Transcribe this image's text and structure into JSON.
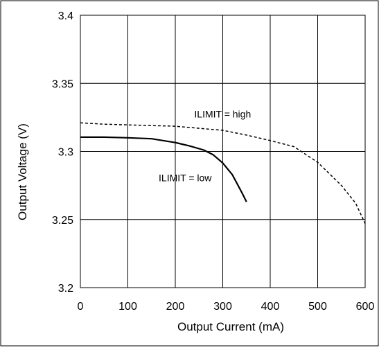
{
  "chart_data": {
    "type": "line",
    "title": "",
    "xlabel": "Output Current (mA)",
    "ylabel": "Output Voltage (V)",
    "xlim": [
      0,
      600
    ],
    "ylim": [
      3.2,
      3.4
    ],
    "xticks": [
      "0",
      "100",
      "200",
      "300",
      "400",
      "500",
      "600"
    ],
    "yticks": [
      "3.2",
      "3.25",
      "3.3",
      "3.35",
      "3.4"
    ],
    "grid": true,
    "legend": "none",
    "series": [
      {
        "name": "ILIMIT = high",
        "style": "dashed",
        "color": "#000000",
        "x": [
          0,
          50,
          100,
          150,
          200,
          250,
          300,
          350,
          400,
          450,
          500,
          550,
          580,
          600
        ],
        "y": [
          3.321,
          3.32,
          3.3195,
          3.319,
          3.3185,
          3.317,
          3.3155,
          3.312,
          3.308,
          3.3035,
          3.292,
          3.275,
          3.262,
          3.247
        ]
      },
      {
        "name": "ILIMIT = low",
        "style": "solid",
        "color": "#000000",
        "x": [
          0,
          50,
          100,
          150,
          200,
          230,
          260,
          280,
          300,
          320,
          340,
          350
        ],
        "y": [
          3.3105,
          3.3105,
          3.31,
          3.3093,
          3.3065,
          3.304,
          3.301,
          3.2975,
          3.2915,
          3.283,
          3.27,
          3.263
        ]
      }
    ],
    "annotations": [
      {
        "text": "ILIMIT = high",
        "x": 240,
        "y": 3.325
      },
      {
        "text": "ILIMIT = low",
        "x": 165,
        "y": 3.278
      }
    ]
  }
}
